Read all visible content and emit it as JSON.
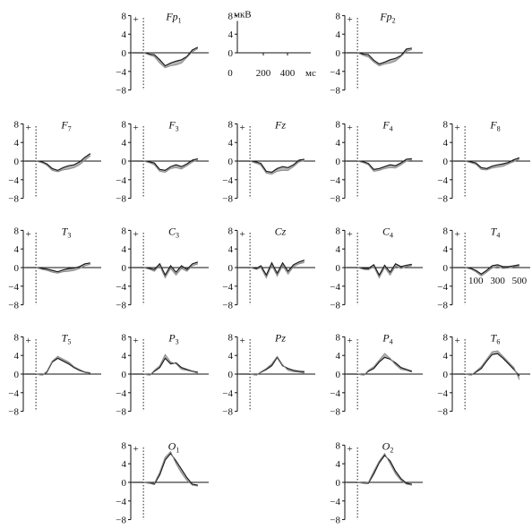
{
  "chart_data": {
    "type": "line",
    "title": "",
    "ylim": [
      -8,
      8
    ],
    "yticks": [
      -8,
      -4,
      0,
      4,
      8
    ],
    "ytick_labels": [
      "−8",
      "−4",
      "0",
      "4",
      "8"
    ],
    "xlim_ms": [
      -100,
      600
    ],
    "stimulus_marker": "+",
    "legend_panel": {
      "y_unit": "мкВ",
      "y_ticks": [
        "8",
        "4",
        "0"
      ],
      "x_unit": "мс",
      "x_ticks": [
        "0",
        "200",
        "400"
      ]
    },
    "time_ticks_panel": "T4",
    "time_tick_labels": [
      "100",
      "300",
      "500"
    ],
    "colors": {
      "trace_dark": "#1a1a1a",
      "trace_light": "#8a8a8a",
      "fill": "#7a7a7a"
    },
    "electrodes": [
      {
        "id": "Fp1",
        "base": "Fp",
        "sub": "1",
        "x": [
          0,
          60,
          100,
          150,
          200,
          250,
          300,
          350,
          400,
          450,
          500
        ],
        "series": [
          {
            "name": "",
            "values": [
              0,
              -0.3,
              -0.4,
              -1.5,
              -2.8,
              -2.2,
              -1.8,
              -1.5,
              -0.8,
              0.6,
              1.2
            ]
          },
          {
            "name": "",
            "values": [
              0,
              -0.5,
              -0.8,
              -2.2,
              -3.2,
              -2.8,
              -2.6,
              -2.2,
              -1.0,
              0.2,
              0.9
            ]
          }
        ]
      },
      {
        "id": "Fp2",
        "base": "Fp",
        "sub": "2",
        "x": [
          0,
          60,
          100,
          150,
          200,
          250,
          300,
          350,
          400,
          450,
          500
        ],
        "series": [
          {
            "name": "",
            "values": [
              0,
              -0.3,
              -0.4,
              -1.6,
              -2.4,
              -2.0,
              -1.5,
              -1.2,
              -0.6,
              0.8,
              1.0
            ]
          },
          {
            "name": "",
            "values": [
              0,
              -0.6,
              -0.9,
              -2.0,
              -2.8,
              -2.4,
              -2.2,
              -1.8,
              -0.8,
              0.3,
              0.7
            ]
          }
        ]
      },
      {
        "id": "F7",
        "base": "F",
        "sub": "7",
        "x": [
          0,
          60,
          100,
          150,
          200,
          250,
          300,
          350,
          400,
          450,
          500
        ],
        "series": [
          {
            "name": "",
            "values": [
              0,
              -0.2,
              -0.6,
              -1.6,
              -2.0,
              -1.4,
              -1.0,
              -0.8,
              -0.2,
              0.8,
              1.6
            ]
          },
          {
            "name": "",
            "values": [
              0,
              -0.4,
              -0.9,
              -2.0,
              -2.3,
              -1.9,
              -1.7,
              -1.4,
              -0.8,
              0.2,
              1.1
            ]
          }
        ]
      },
      {
        "id": "F3",
        "base": "F",
        "sub": "3",
        "x": [
          0,
          60,
          100,
          150,
          200,
          250,
          300,
          350,
          400,
          450,
          500
        ],
        "series": [
          {
            "name": "",
            "values": [
              0,
              -0.2,
              -0.4,
              -1.8,
              -2.0,
              -1.2,
              -0.8,
              -1.2,
              -0.6,
              0.2,
              0.5
            ]
          },
          {
            "name": "",
            "values": [
              0,
              -0.4,
              -0.8,
              -2.2,
              -2.4,
              -1.6,
              -1.4,
              -1.7,
              -1.0,
              -0.2,
              0.2
            ]
          }
        ]
      },
      {
        "id": "Fz",
        "base": "Fz",
        "sub": "",
        "x": [
          0,
          60,
          100,
          150,
          200,
          250,
          300,
          350,
          400,
          450,
          500
        ],
        "series": [
          {
            "name": "",
            "values": [
              0,
              -0.2,
              -0.5,
              -2.2,
              -2.4,
              -1.6,
              -1.2,
              -1.4,
              -0.8,
              0.2,
              0.4
            ]
          },
          {
            "name": "",
            "values": [
              0,
              -0.5,
              -0.9,
              -2.6,
              -2.8,
              -2.2,
              -2.0,
              -2.0,
              -1.2,
              -0.2,
              0.1
            ]
          }
        ]
      },
      {
        "id": "F4",
        "base": "F",
        "sub": "4",
        "x": [
          0,
          60,
          100,
          150,
          200,
          250,
          300,
          350,
          400,
          450,
          500
        ],
        "series": [
          {
            "name": "",
            "values": [
              0,
              -0.2,
              -0.5,
              -1.8,
              -1.6,
              -1.2,
              -0.8,
              -1.0,
              -0.4,
              0.4,
              0.5
            ]
          },
          {
            "name": "",
            "values": [
              0,
              -0.4,
              -0.8,
              -2.2,
              -2.0,
              -1.6,
              -1.4,
              -1.5,
              -0.8,
              0.0,
              0.2
            ]
          }
        ]
      },
      {
        "id": "F8",
        "base": "F",
        "sub": "8",
        "x": [
          0,
          60,
          100,
          150,
          200,
          250,
          300,
          350,
          400,
          450,
          500
        ],
        "series": [
          {
            "name": "",
            "values": [
              0,
              -0.2,
              -0.4,
              -1.4,
              -1.6,
              -1.1,
              -0.8,
              -0.6,
              -0.3,
              0.3,
              0.7
            ]
          },
          {
            "name": "",
            "values": [
              0,
              -0.4,
              -0.7,
              -1.8,
              -1.9,
              -1.5,
              -1.3,
              -1.1,
              -0.6,
              -0.1,
              0.4
            ]
          }
        ]
      },
      {
        "id": "T3",
        "base": "T",
        "sub": "3",
        "x": [
          0,
          60,
          100,
          150,
          200,
          250,
          300,
          350,
          400,
          450,
          500
        ],
        "series": [
          {
            "name": "",
            "values": [
              0,
              -0.2,
              -0.3,
              -0.6,
              -0.9,
              -0.5,
              -0.2,
              -0.1,
              0.2,
              0.8,
              1.0
            ]
          },
          {
            "name": "",
            "values": [
              0,
              -0.4,
              -0.6,
              -1.0,
              -1.2,
              -0.9,
              -0.8,
              -0.6,
              -0.2,
              0.4,
              0.7
            ]
          }
        ]
      },
      {
        "id": "C3",
        "base": "C",
        "sub": "3",
        "x": [
          0,
          60,
          100,
          150,
          200,
          250,
          300,
          350,
          400,
          450,
          500
        ],
        "series": [
          {
            "name": "",
            "values": [
              0,
              -0.2,
              -0.4,
              0.8,
              -1.6,
              0.4,
              -1.0,
              0.4,
              -0.4,
              0.8,
              1.2
            ]
          },
          {
            "name": "",
            "values": [
              0,
              -0.4,
              -0.8,
              0.4,
              -2.2,
              -0.2,
              -1.6,
              -0.2,
              -0.8,
              0.4,
              0.8
            ]
          }
        ]
      },
      {
        "id": "Cz",
        "base": "Cz",
        "sub": "",
        "x": [
          0,
          60,
          100,
          150,
          200,
          250,
          300,
          350,
          400,
          450,
          500
        ],
        "series": [
          {
            "name": "",
            "values": [
              0,
              -0.2,
              0.4,
              -1.6,
              1.0,
              -1.2,
              1.0,
              -0.8,
              0.6,
              1.2,
              1.6
            ]
          },
          {
            "name": "",
            "values": [
              0,
              -0.4,
              0.0,
              -2.2,
              0.5,
              -1.8,
              0.4,
              -1.4,
              0.2,
              0.8,
              1.1
            ]
          }
        ]
      },
      {
        "id": "C4",
        "base": "C",
        "sub": "4",
        "x": [
          0,
          60,
          100,
          150,
          200,
          250,
          300,
          350,
          400,
          450,
          500
        ],
        "series": [
          {
            "name": "",
            "values": [
              0,
              -0.2,
              -0.2,
              0.6,
              -1.6,
              0.5,
              -1.0,
              0.8,
              0.2,
              0.5,
              0.7
            ]
          },
          {
            "name": "",
            "values": [
              0,
              -0.4,
              -0.5,
              0.2,
              -2.2,
              0.0,
              -1.6,
              0.3,
              -0.2,
              0.2,
              0.4
            ]
          }
        ]
      },
      {
        "id": "T4",
        "base": "T",
        "sub": "4",
        "x": [
          0,
          60,
          100,
          150,
          200,
          250,
          300,
          350,
          400,
          450,
          500
        ],
        "series": [
          {
            "name": "",
            "values": [
              0,
              -0.2,
              -0.6,
              -1.4,
              -0.6,
              0.4,
              0.6,
              0.2,
              0.2,
              0.4,
              0.6
            ]
          },
          {
            "name": "",
            "values": [
              0,
              -0.4,
              -0.9,
              -1.8,
              -1.0,
              -0.1,
              0.2,
              -0.2,
              -0.1,
              0.2,
              0.3
            ]
          }
        ]
      },
      {
        "id": "T5",
        "base": "T",
        "sub": "5",
        "x": [
          0,
          60,
          100,
          150,
          200,
          250,
          300,
          350,
          400,
          450,
          500
        ],
        "series": [
          {
            "name": "",
            "values": [
              0,
              -0.2,
              0.4,
              2.6,
              3.4,
              2.8,
              2.2,
              1.4,
              0.8,
              0.4,
              0.2
            ]
          },
          {
            "name": "",
            "values": [
              0,
              -0.2,
              0.6,
              2.8,
              3.8,
              3.2,
              2.6,
              1.6,
              1.0,
              0.5,
              0.3
            ]
          }
        ]
      },
      {
        "id": "P3",
        "base": "P",
        "sub": "3",
        "x": [
          0,
          60,
          100,
          150,
          200,
          250,
          300,
          350,
          400,
          450,
          500
        ],
        "series": [
          {
            "name": "",
            "values": [
              0,
              -0.2,
              0.6,
              1.4,
              3.4,
              2.2,
              2.4,
              1.4,
              1.0,
              0.6,
              0.4
            ]
          },
          {
            "name": "",
            "values": [
              0,
              -0.2,
              0.8,
              1.8,
              4.2,
              2.6,
              2.2,
              1.0,
              0.8,
              0.5,
              0.2
            ]
          }
        ]
      },
      {
        "id": "Pz",
        "base": "Pz",
        "sub": "",
        "x": [
          0,
          60,
          100,
          150,
          200,
          250,
          300,
          350,
          400,
          450,
          500
        ],
        "series": [
          {
            "name": "",
            "values": [
              0,
              -0.2,
              0.4,
              1.0,
              1.8,
              3.6,
              1.8,
              1.2,
              0.8,
              0.6,
              0.5
            ]
          },
          {
            "name": "",
            "values": [
              0,
              -0.2,
              0.5,
              1.2,
              2.2,
              3.8,
              2.0,
              0.8,
              0.5,
              0.4,
              0.2
            ]
          }
        ]
      },
      {
        "id": "P4",
        "base": "P",
        "sub": "4",
        "x": [
          0,
          60,
          100,
          150,
          200,
          250,
          300,
          350,
          400,
          450,
          500
        ],
        "series": [
          {
            "name": "",
            "values": [
              0,
              -0.2,
              0.6,
              1.2,
              2.6,
              3.6,
              3.2,
              2.4,
              1.4,
              1.0,
              0.6
            ]
          },
          {
            "name": "",
            "values": [
              0,
              -0.2,
              0.8,
              1.6,
              3.0,
              4.4,
              3.4,
              2.0,
              1.0,
              0.8,
              0.4
            ]
          }
        ]
      },
      {
        "id": "T6",
        "base": "T",
        "sub": "6",
        "x": [
          0,
          60,
          100,
          150,
          200,
          250,
          300,
          350,
          400,
          450,
          500
        ],
        "series": [
          {
            "name": "",
            "values": [
              0,
              -0.2,
              0.4,
              1.2,
              2.8,
              4.2,
              4.4,
              3.4,
              2.2,
              1.0,
              -0.4
            ]
          },
          {
            "name": "",
            "values": [
              0,
              -0.2,
              0.6,
              1.6,
              3.2,
              4.8,
              5.0,
              3.8,
              2.6,
              1.4,
              -1.2
            ]
          }
        ]
      },
      {
        "id": "O1",
        "base": "O",
        "sub": "1",
        "x": [
          0,
          60,
          100,
          150,
          200,
          250,
          300,
          350,
          400,
          450,
          500
        ],
        "series": [
          {
            "name": "",
            "values": [
              0,
              -0.2,
              -0.4,
              1.6,
              4.8,
              6.2,
              4.6,
              2.8,
              1.0,
              -0.4,
              -0.6
            ]
          },
          {
            "name": "",
            "values": [
              0,
              -0.2,
              -0.2,
              2.2,
              5.4,
              6.6,
              4.0,
              2.0,
              0.4,
              -0.6,
              -0.8
            ]
          }
        ]
      },
      {
        "id": "O2",
        "base": "O",
        "sub": "2",
        "x": [
          0,
          60,
          100,
          150,
          200,
          250,
          300,
          350,
          400,
          450,
          500
        ],
        "series": [
          {
            "name": "",
            "values": [
              0,
              -0.2,
              -0.2,
              1.8,
              4.2,
              5.8,
              4.6,
              2.4,
              0.8,
              -0.2,
              -0.4
            ]
          },
          {
            "name": "",
            "values": [
              0,
              -0.2,
              0.0,
              2.4,
              4.6,
              6.2,
              4.0,
              1.8,
              0.4,
              -0.4,
              -0.6
            ]
          }
        ]
      }
    ]
  }
}
